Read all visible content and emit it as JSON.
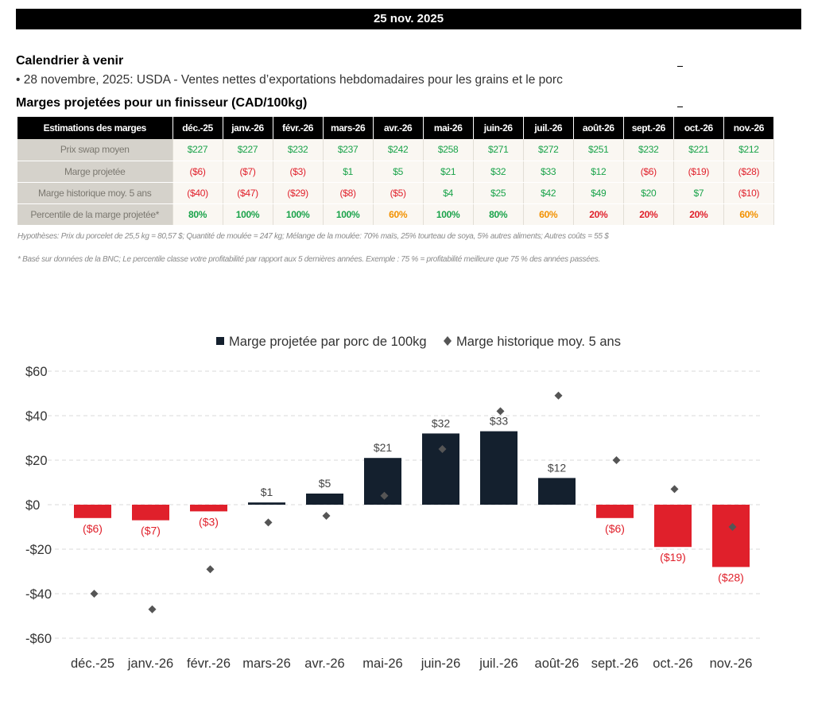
{
  "header": {
    "date": "25 nov. 2025"
  },
  "calendar": {
    "title": "Calendrier à venir",
    "item": "• 28 novembre, 2025: USDA - Ventes nettes d’exportations hebdomadaires pour les grains et le porc"
  },
  "margins_table": {
    "title": "Marges projetées pour un finisseur (CAD/100kg)",
    "header_label": "Estimations des marges",
    "months": [
      "déc.-25",
      "janv.-26",
      "févr.-26",
      "mars-26",
      "avr.-26",
      "mai-26",
      "juin-26",
      "juil.-26",
      "août-26",
      "sept.-26",
      "oct.-26",
      "nov.-26"
    ],
    "rows": [
      {
        "label": "Prix swap moyen",
        "values": [
          "$227",
          "$227",
          "$232",
          "$237",
          "$242",
          "$258",
          "$271",
          "$272",
          "$251",
          "$232",
          "$221",
          "$212"
        ],
        "tones": [
          "pos",
          "pos",
          "pos",
          "pos",
          "pos",
          "pos",
          "pos",
          "pos",
          "pos",
          "pos",
          "pos",
          "pos"
        ]
      },
      {
        "label": "Marge projetée",
        "values": [
          "($6)",
          "($7)",
          "($3)",
          "$1",
          "$5",
          "$21",
          "$32",
          "$33",
          "$12",
          "($6)",
          "($19)",
          "($28)"
        ],
        "tones": [
          "neg",
          "neg",
          "neg",
          "pos",
          "pos",
          "pos",
          "pos",
          "pos",
          "pos",
          "neg",
          "neg",
          "neg"
        ]
      },
      {
        "label": "Marge historique moy. 5 ans",
        "values": [
          "($40)",
          "($47)",
          "($29)",
          "($8)",
          "($5)",
          "$4",
          "$25",
          "$42",
          "$49",
          "$20",
          "$7",
          "($10)"
        ],
        "tones": [
          "neg",
          "neg",
          "neg",
          "neg",
          "neg",
          "pos",
          "pos",
          "pos",
          "pos",
          "pos",
          "pos",
          "neg"
        ]
      },
      {
        "label": "Percentile de la marge projetée*",
        "values": [
          "80%",
          "100%",
          "100%",
          "100%",
          "60%",
          "100%",
          "80%",
          "60%",
          "20%",
          "20%",
          "20%",
          "60%"
        ],
        "tones": [
          "pct-green",
          "pct-green",
          "pct-green",
          "pct-green",
          "pct-orange",
          "pct-green",
          "pct-green",
          "pct-orange",
          "pct-red",
          "pct-red",
          "pct-red",
          "pct-orange"
        ]
      }
    ],
    "assumptions": "Hypothèses: Prix du porcelet de 25,5 kg = 80,57 $; Quantité de moulée = 247 kg; Mélange de la moulée: 70% maïs, 25% tourteau de soya, 5% autres aliments; Autres coûts = 55 $",
    "footnote": "* Basé sur données de la BNC; Le percentile classe votre profitabilité par rapport aux 5 dernières années. Exemple : 75 % = profitabilité meilleure que 75 % des années passées."
  },
  "chart_data": {
    "type": "bar",
    "categories": [
      "déc.-25",
      "janv.-26",
      "févr.-26",
      "mars-26",
      "avr.-26",
      "mai-26",
      "juin-26",
      "juil.-26",
      "août-26",
      "sept.-26",
      "oct.-26",
      "nov.-26"
    ],
    "series": [
      {
        "name": "Marge projetée par porc de 100kg",
        "type": "bar",
        "values": [
          -6,
          -7,
          -3,
          1,
          5,
          21,
          32,
          33,
          12,
          -6,
          -19,
          -28
        ],
        "labels": [
          "($6)",
          "($7)",
          "($3)",
          "$1",
          "$5",
          "$21",
          "$32",
          "$33",
          "$12",
          "($6)",
          "($19)",
          "($28)"
        ]
      },
      {
        "name": "Marge historique moy. 5 ans",
        "type": "scatter",
        "marker": "diamond",
        "values": [
          -40,
          -47,
          -29,
          -8,
          -5,
          4,
          25,
          42,
          49,
          20,
          7,
          -10
        ]
      }
    ],
    "ylim": [
      -60,
      60
    ],
    "yticks": [
      60,
      40,
      20,
      0,
      -20,
      -40,
      -60
    ],
    "ytick_labels": [
      "$60",
      "$40",
      "$20",
      "$0",
      "-$20",
      "-$40",
      "-$60"
    ],
    "grid": true,
    "legend": "top-center",
    "colors": {
      "positive_bar": "#14202e",
      "negative_bar": "#e0202b",
      "marker": "#555555",
      "positive_label": "#444444",
      "negative_label": "#e0202b"
    }
  }
}
